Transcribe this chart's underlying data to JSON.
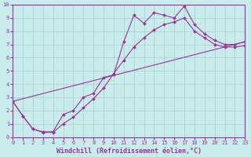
{
  "bg_color": "#c8ecec",
  "line_color": "#993399",
  "grid_color": "#aacccc",
  "xlabel": "Windchill (Refroidissement éolien,°C)",
  "xlim": [
    0,
    23
  ],
  "ylim": [
    0,
    10
  ],
  "xticks": [
    0,
    1,
    2,
    3,
    4,
    5,
    6,
    7,
    8,
    9,
    10,
    11,
    12,
    13,
    14,
    15,
    16,
    17,
    18,
    19,
    20,
    21,
    22,
    23
  ],
  "yticks": [
    0,
    1,
    2,
    3,
    4,
    5,
    6,
    7,
    8,
    9,
    10
  ],
  "series1_x": [
    0,
    1,
    2,
    3,
    4,
    5,
    6,
    7,
    8,
    9,
    10,
    11,
    12,
    13,
    14,
    15,
    16,
    17,
    18,
    19,
    20,
    21,
    22,
    23
  ],
  "series1_y": [
    2.7,
    1.6,
    0.6,
    0.4,
    0.4,
    1.7,
    2.0,
    3.0,
    3.3,
    4.5,
    4.7,
    7.2,
    9.2,
    8.6,
    9.4,
    9.2,
    9.0,
    9.9,
    8.5,
    7.8,
    7.3,
    7.0,
    7.0,
    7.2
  ],
  "series2_x": [
    0,
    1,
    2,
    3,
    4,
    5,
    6,
    7,
    8,
    9,
    10,
    11,
    12,
    13,
    14,
    15,
    16,
    17,
    18,
    19,
    20,
    21,
    22,
    23
  ],
  "series2_y": [
    2.7,
    1.6,
    0.6,
    0.35,
    0.35,
    1.0,
    1.5,
    2.2,
    2.9,
    3.7,
    4.8,
    5.8,
    6.8,
    7.5,
    8.1,
    8.5,
    8.7,
    9.0,
    8.0,
    7.5,
    7.0,
    6.8,
    6.8,
    6.9
  ],
  "series3_x": [
    0,
    23
  ],
  "series3_y": [
    2.7,
    7.2
  ],
  "line_width": 0.8,
  "marker": "D",
  "marker_size": 2.0,
  "tick_fontsize": 5.0,
  "xlabel_fontsize": 6.0,
  "tick_color": "#993399",
  "spine_color": "#993399"
}
